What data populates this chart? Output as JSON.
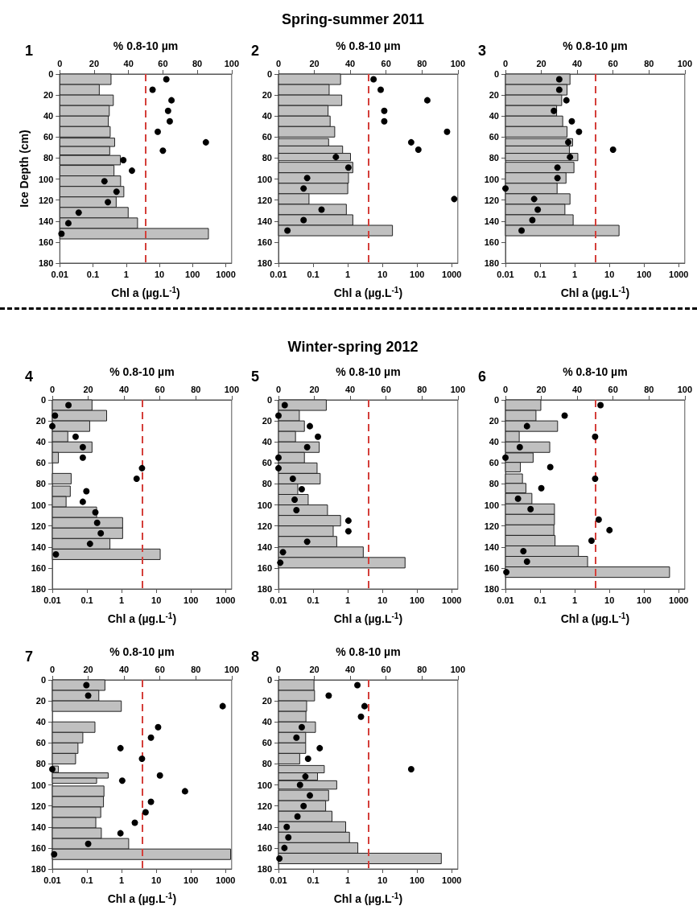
{
  "chart_data": [
    {
      "type": "bar",
      "orientation": "horizontal",
      "annotations": [
        "1"
      ],
      "xlabel": "Chl a (µg.L$^{-1}$)",
      "x2label": "% 0.8-10 µm",
      "ylabel": "Ice Depth (cm)",
      "log": "x",
      "marker": "circle",
      "xlim": [
        0.01,
        1500
      ],
      "xticks": [
        0.01,
        0.1,
        1,
        10,
        100,
        1000
      ],
      "x2lim": [
        0,
        100
      ],
      "x2ticks": [
        0,
        20,
        40,
        60,
        80,
        100
      ],
      "ylim": [
        180,
        0
      ],
      "yticks": [
        0,
        20,
        40,
        60,
        80,
        100,
        120,
        140,
        160,
        180
      ],
      "x": [
        5,
        15,
        25,
        35,
        45,
        55,
        65,
        73,
        82,
        92,
        102,
        112,
        122,
        132,
        142,
        152
      ],
      "series": [
        {
          "type": "bar",
          "color": "#c0c0c0",
          "values": [
            0.35,
            0.155,
            0.41,
            0.31,
            0.29,
            0.33,
            0.45,
            0.32,
            0.67,
            0.43,
            0.68,
            0.85,
            0.5,
            1.15,
            2.2,
            300
          ]
        },
        {
          "type": "scatter",
          "axis": "x2",
          "color": "#000000",
          "values": [
            62,
            54,
            65,
            63,
            64,
            57,
            85,
            60,
            37,
            42,
            26,
            33,
            28,
            11,
            5,
            1
          ]
        }
      ],
      "ref_lines": [
        {
          "axis": "x2",
          "value": 50,
          "color": "#d43f3a",
          "line_style": "dashed"
        }
      ]
    },
    {
      "type": "bar",
      "orientation": "horizontal",
      "title": "Spring-summer 2011",
      "annotations": [
        "2"
      ],
      "xlabel": "Chl a (µg.L$^{-1}$)",
      "x2label": "% 0.8-10 µm",
      "log": "x",
      "marker": "circle",
      "xlim": [
        0.01,
        1500
      ],
      "xticks": [
        0.01,
        0.1,
        1,
        10,
        100,
        1000
      ],
      "x2lim": [
        0,
        100
      ],
      "x2ticks": [
        0,
        20,
        40,
        60,
        80,
        100
      ],
      "ylim": [
        180,
        0
      ],
      "yticks": [
        0,
        20,
        40,
        60,
        80,
        100,
        120,
        140,
        160,
        180
      ],
      "x": [
        5,
        15,
        25,
        35,
        45,
        55,
        65,
        72,
        79,
        89,
        99,
        109,
        119,
        129,
        139,
        149
      ],
      "series": [
        {
          "type": "bar",
          "color": "#c0c0c0",
          "values": [
            0.62,
            0.29,
            0.67,
            0.27,
            0.31,
            0.42,
            0.28,
            0.71,
            1.2,
            1.4,
            1.05,
            1.0,
            0.076,
            0.91,
            1.4,
            19.5
          ]
        },
        {
          "type": "scatter",
          "axis": "x2",
          "color": "#000000",
          "values": [
            53,
            57,
            83,
            59,
            59,
            94,
            74,
            78,
            32,
            39,
            16,
            14,
            98,
            24,
            14,
            5
          ]
        }
      ],
      "ref_lines": [
        {
          "axis": "x2",
          "value": 50,
          "color": "#d43f3a",
          "line_style": "dashed"
        }
      ]
    },
    {
      "type": "bar",
      "orientation": "horizontal",
      "annotations": [
        "3"
      ],
      "xlabel": "Chl a (µg.L$^{-1}$)",
      "x2label": "% 0.8-10 µm",
      "log": "x",
      "marker": "circle",
      "xlim": [
        0.01,
        1500
      ],
      "xticks": [
        0.01,
        0.1,
        1,
        10,
        100,
        1000
      ],
      "x2lim": [
        0,
        100
      ],
      "x2ticks": [
        0,
        20,
        40,
        60,
        80,
        100
      ],
      "ylim": [
        180,
        0
      ],
      "yticks": [
        0,
        20,
        40,
        60,
        80,
        100,
        120,
        140,
        160,
        180
      ],
      "x": [
        5,
        15,
        25,
        35,
        45,
        55,
        65,
        72,
        79,
        89,
        99,
        109,
        119,
        129,
        139,
        149
      ],
      "series": [
        {
          "type": "bar",
          "color": "#c0c0c0",
          "values": [
            0.73,
            0.6,
            0.42,
            0.3,
            0.45,
            0.6,
            0.87,
            0.7,
            1.23,
            0.95,
            0.56,
            0.31,
            0.73,
            0.52,
            0.9,
            19
          ]
        },
        {
          "type": "scatter",
          "axis": "x2",
          "color": "#000000",
          "values": [
            30,
            30,
            34,
            27,
            37,
            41,
            35,
            60,
            36,
            29,
            29,
            0,
            16,
            18,
            15,
            9
          ]
        }
      ],
      "ref_lines": [
        {
          "axis": "x2",
          "value": 50,
          "color": "#d43f3a",
          "line_style": "dashed"
        }
      ]
    },
    {
      "type": "bar",
      "orientation": "horizontal",
      "annotations": [
        "4"
      ],
      "xlabel": "Chl a (µg.L$^{-1}$)",
      "x2label": "% 0.8-10 µm",
      "log": "x",
      "marker": "circle",
      "xlim": [
        0.01,
        1500
      ],
      "xticks": [
        0.01,
        0.1,
        1,
        10,
        100,
        1000
      ],
      "x2lim": [
        0,
        100
      ],
      "x2ticks": [
        0,
        20,
        40,
        60,
        80,
        100
      ],
      "ylim": [
        180,
        0
      ],
      "yticks": [
        0,
        20,
        40,
        60,
        80,
        100,
        120,
        140,
        160,
        180
      ],
      "x": [
        5,
        15,
        25,
        35,
        45,
        55,
        65,
        75,
        87,
        97,
        107,
        117,
        127,
        137,
        147
      ],
      "series": [
        {
          "type": "bar",
          "color": "#c0c0c0",
          "values": [
            0.14,
            0.37,
            0.12,
            0.028,
            0.14,
            0.015,
            null,
            0.035,
            0.033,
            0.025,
            0.19,
            1.07,
            1.07,
            0.46,
            13
          ]
        },
        {
          "type": "scatter",
          "axis": "x2",
          "color": "#000000",
          "values": [
            9,
            1.5,
            0,
            13,
            17,
            17,
            50,
            47,
            19,
            17,
            24,
            25,
            27,
            21,
            2
          ]
        }
      ],
      "ref_lines": [
        {
          "axis": "x2",
          "value": 50,
          "color": "#d43f3a",
          "line_style": "dashed"
        }
      ]
    },
    {
      "type": "bar",
      "orientation": "horizontal",
      "title": "Winter-spring 2012",
      "annotations": [
        "5"
      ],
      "xlabel": "Chl a (µg.L$^{-1}$)",
      "x2label": "% 0.8-10 µm",
      "log": "x",
      "marker": "circle",
      "xlim": [
        0.01,
        1500
      ],
      "xticks": [
        0.01,
        0.1,
        1,
        10,
        100,
        1000
      ],
      "x2lim": [
        0,
        100
      ],
      "x2ticks": [
        0,
        20,
        40,
        60,
        80,
        100
      ],
      "ylim": [
        180,
        0
      ],
      "yticks": [
        0,
        20,
        40,
        60,
        80,
        100,
        120,
        140,
        160,
        180
      ],
      "x": [
        5,
        15,
        25,
        35,
        45,
        55,
        65,
        75,
        85,
        95,
        105,
        115,
        125,
        135,
        145,
        155
      ],
      "series": [
        {
          "type": "bar",
          "color": "#c0c0c0",
          "values": [
            0.24,
            0.04,
            0.056,
            0.031,
            0.15,
            0.056,
            0.13,
            0.16,
            0.036,
            0.072,
            0.26,
            0.62,
            0.38,
            0.48,
            2.8,
            45
          ]
        },
        {
          "type": "scatter",
          "axis": "x2",
          "color": "#000000",
          "values": [
            3.5,
            0,
            17.5,
            22,
            16,
            0,
            0,
            8,
            13,
            9,
            10,
            39,
            39,
            16,
            2.5,
            1
          ]
        }
      ],
      "ref_lines": [
        {
          "axis": "x2",
          "value": 50,
          "color": "#d43f3a",
          "line_style": "dashed"
        }
      ]
    },
    {
      "type": "bar",
      "orientation": "horizontal",
      "annotations": [
        "6"
      ],
      "xlabel": "Chl a (µg.L$^{-1}$)",
      "x2label": "% 0.8-10 µm",
      "log": "x",
      "marker": "circle",
      "xlim": [
        0.01,
        1500
      ],
      "xticks": [
        0.01,
        0.1,
        1,
        10,
        100,
        1000
      ],
      "x2lim": [
        0,
        100
      ],
      "x2ticks": [
        0,
        20,
        40,
        60,
        80,
        100
      ],
      "ylim": [
        180,
        0
      ],
      "yticks": [
        0,
        20,
        40,
        60,
        80,
        100,
        120,
        140,
        160,
        180
      ],
      "x": [
        5,
        15,
        25,
        35,
        45,
        55,
        64,
        75,
        84,
        94,
        104,
        114,
        124,
        134,
        144,
        154,
        164
      ],
      "series": [
        {
          "type": "bar",
          "color": "#c0c0c0",
          "values": [
            0.105,
            0.076,
            0.32,
            0.025,
            0.19,
            0.063,
            0.027,
            0.031,
            0.039,
            0.058,
            0.26,
            0.26,
            0.25,
            0.27,
            1.28,
            2.35,
            545
          ]
        },
        {
          "type": "scatter",
          "axis": "x2",
          "color": "#000000",
          "values": [
            53,
            33,
            12,
            50,
            8,
            0,
            25,
            50,
            20,
            7,
            14,
            52,
            58,
            48,
            10,
            12,
            0.5
          ]
        }
      ],
      "ref_lines": [
        {
          "axis": "x2",
          "value": 50,
          "color": "#d43f3a",
          "line_style": "dashed"
        }
      ]
    },
    {
      "type": "bar",
      "orientation": "horizontal",
      "annotations": [
        "7"
      ],
      "xlabel": "Chl a (µg.L$^{-1}$)",
      "x2label": "% 0.8-10 µm",
      "log": "x",
      "marker": "circle",
      "xlim": [
        0.01,
        1500
      ],
      "xticks": [
        0.01,
        0.1,
        1,
        10,
        100,
        1000
      ],
      "x2lim": [
        0,
        100
      ],
      "x2ticks": [
        0,
        20,
        40,
        60,
        80,
        100
      ],
      "ylim": [
        180,
        0
      ],
      "yticks": [
        0,
        20,
        40,
        60,
        80,
        100,
        120,
        140,
        160,
        180
      ],
      "x": [
        5,
        15,
        25,
        45,
        55,
        65,
        75,
        85,
        91,
        96,
        106,
        116,
        126,
        136,
        146,
        156,
        166
      ],
      "series": [
        {
          "type": "bar",
          "color": "#c0c0c0",
          "values": [
            0.33,
            0.22,
            0.98,
            0.17,
            0.076,
            0.055,
            0.047,
            0.015,
            0.41,
            0.19,
            0.31,
            0.3,
            0.25,
            0.18,
            0.26,
            1.6,
            1400
          ]
        },
        {
          "type": "scatter",
          "axis": "x2",
          "color": "#000000",
          "values": [
            19,
            20,
            95,
            59,
            55,
            38,
            50,
            0,
            60,
            39,
            74,
            55,
            52,
            46,
            38,
            20,
            1
          ]
        }
      ],
      "ref_lines": [
        {
          "axis": "x2",
          "value": 50,
          "color": "#d43f3a",
          "line_style": "dashed"
        }
      ]
    },
    {
      "type": "bar",
      "orientation": "horizontal",
      "annotations": [
        "8"
      ],
      "xlabel": "Chl a (µg.L$^{-1}$)",
      "x2label": "% 0.8-10 µm",
      "log": "x",
      "marker": "circle",
      "xlim": [
        0.01,
        1500
      ],
      "xticks": [
        0.01,
        0.1,
        1,
        10,
        100,
        1000
      ],
      "x2lim": [
        0,
        100
      ],
      "x2ticks": [
        0,
        20,
        40,
        60,
        80,
        100
      ],
      "ylim": [
        180,
        0
      ],
      "yticks": [
        0,
        20,
        40,
        60,
        80,
        100,
        120,
        140,
        160,
        180
      ],
      "x": [
        5,
        15,
        25,
        35,
        45,
        55,
        65,
        75,
        85,
        92,
        100,
        110,
        120,
        130,
        140,
        150,
        160,
        170
      ],
      "series": [
        {
          "type": "bar",
          "color": "#c0c0c0",
          "values": [
            0.106,
            0.11,
            0.065,
            0.062,
            0.117,
            0.061,
            0.061,
            0.041,
            0.21,
            0.134,
            0.48,
            0.28,
            0.23,
            0.35,
            0.87,
            1.12,
            1.95,
            500
          ]
        },
        {
          "type": "scatter",
          "axis": "x2",
          "color": "#000000",
          "values": [
            44,
            28,
            48,
            46,
            13,
            10,
            23,
            16.5,
            74,
            15,
            12,
            17.5,
            14,
            10.6,
            4.6,
            5.5,
            3.3,
            0.5
          ]
        }
      ],
      "ref_lines": [
        {
          "axis": "x2",
          "value": 50,
          "color": "#d43f3a",
          "line_style": "dashed"
        }
      ]
    }
  ]
}
